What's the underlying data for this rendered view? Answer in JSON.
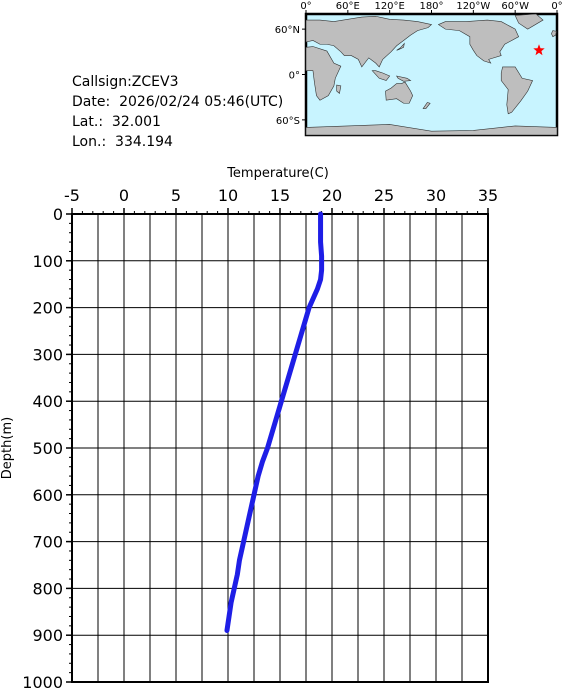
{
  "info": {
    "callsign": "Callsign:ZCEV3",
    "date": "Date:  2026/02/24 05:46(UTC)",
    "lat": "Lat.:  32.001",
    "lon": "Lon.:  334.194"
  },
  "map": {
    "lon_labels": [
      "0°",
      "60°E",
      "120°E",
      "180°",
      "120°W",
      "60°W",
      "0°"
    ],
    "lat_labels": [
      "60°N",
      "0°",
      "60°S"
    ],
    "station": {
      "lon": 334.194,
      "lat": 32.001
    },
    "colors": {
      "ocean": "#c8f4ff",
      "land": "#bebebe",
      "marker": "#ff0000"
    }
  },
  "chart_data": {
    "type": "line",
    "xlabel": "Temperature(C)",
    "ylabel": "Depth(m)",
    "xlim": [
      -5,
      35
    ],
    "ylim": [
      1000,
      0
    ],
    "xticks": [
      "-5",
      "0",
      "5",
      "10",
      "15",
      "20",
      "25",
      "30",
      "35"
    ],
    "yticks": [
      "0",
      "100",
      "200",
      "300",
      "400",
      "500",
      "600",
      "700",
      "800",
      "900",
      "1000"
    ],
    "grid": true,
    "line_color": "#1e1ee6",
    "series": [
      {
        "x": [
          18.9,
          18.9,
          18.9,
          19.0,
          19.0,
          18.9,
          18.6,
          18.2,
          17.8,
          17.4,
          17.0,
          16.6,
          16.2,
          15.8,
          15.4,
          15.0,
          14.6,
          14.2,
          13.8,
          13.3,
          12.9,
          12.6,
          12.3,
          12.0,
          11.7,
          11.4,
          11.1,
          10.9,
          10.6,
          10.3,
          10.1,
          9.9
        ],
        "y": [
          0,
          30,
          60,
          90,
          120,
          140,
          160,
          180,
          200,
          230,
          260,
          290,
          320,
          350,
          380,
          410,
          440,
          470,
          500,
          530,
          560,
          590,
          620,
          650,
          680,
          710,
          740,
          770,
          800,
          830,
          860,
          890
        ]
      }
    ]
  }
}
